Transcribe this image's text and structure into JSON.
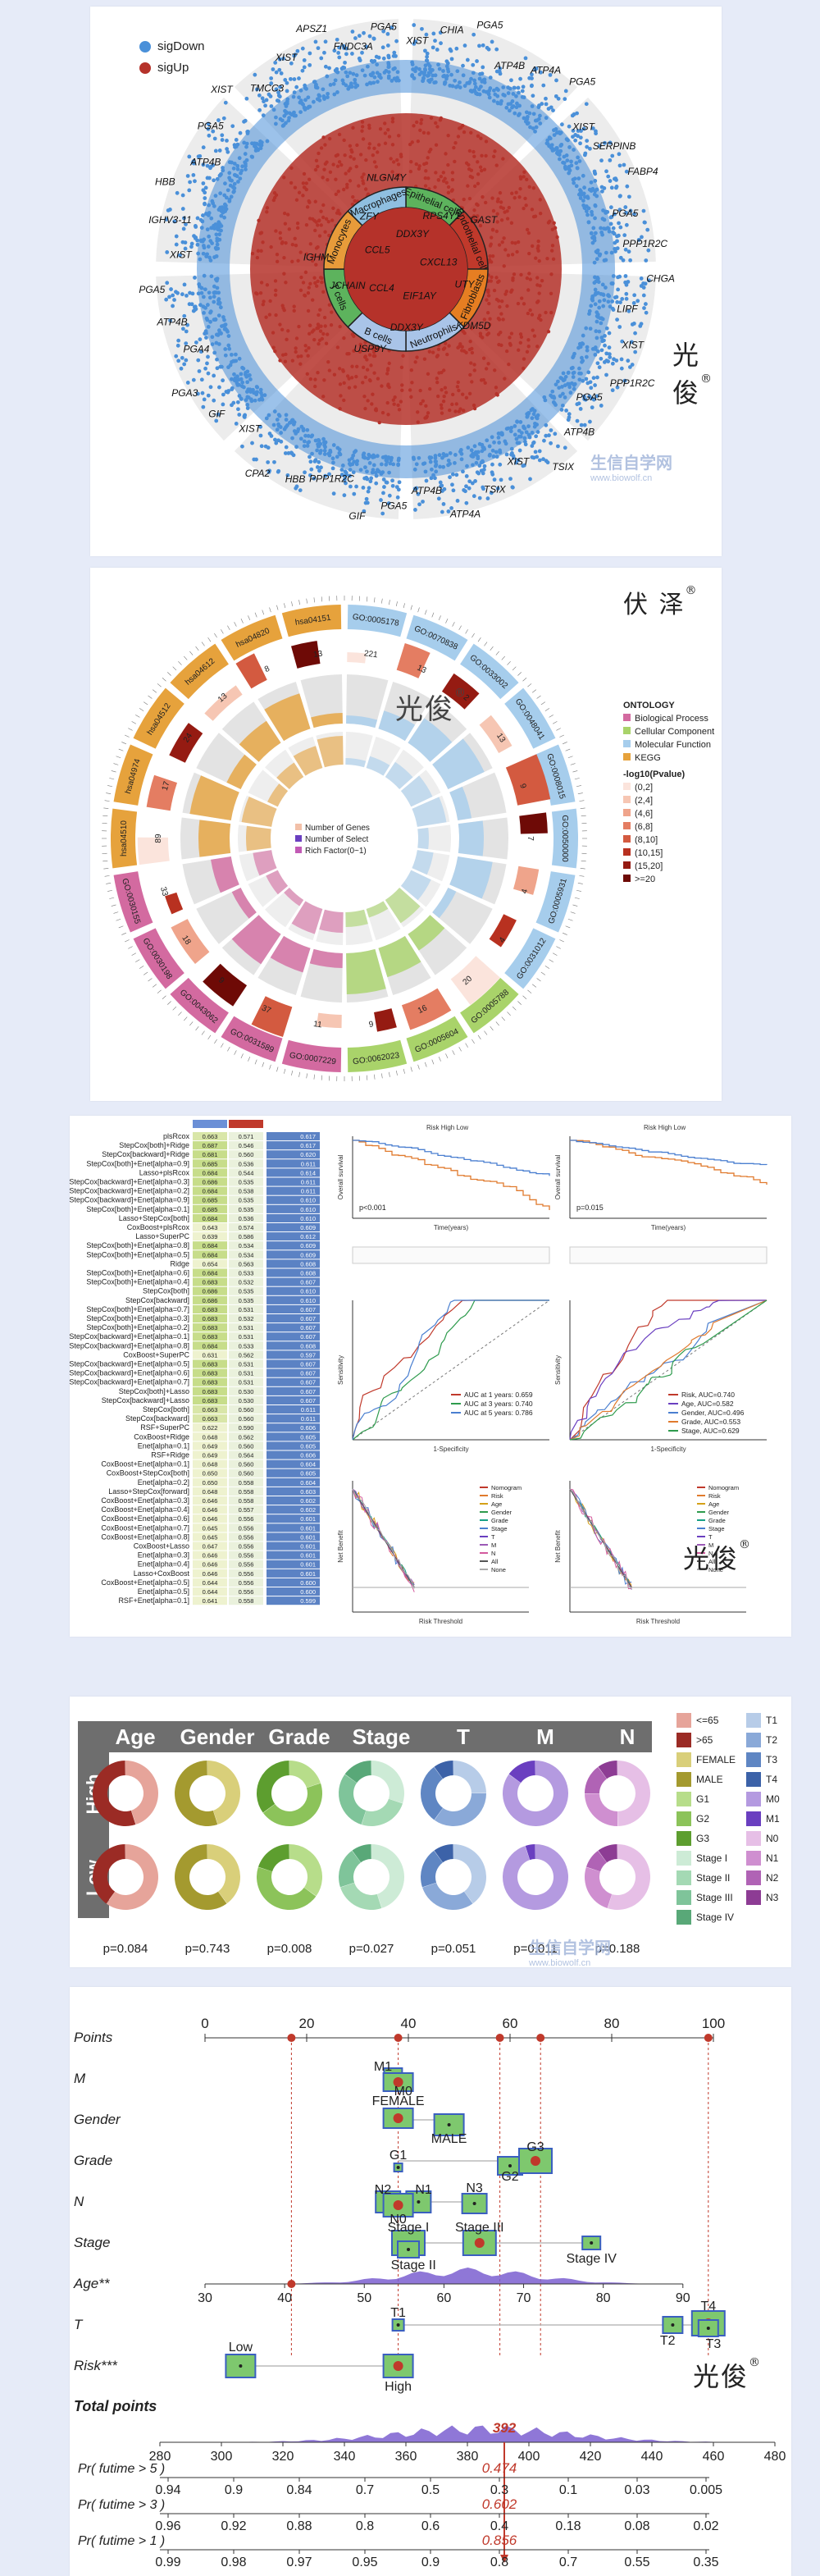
{
  "watermark": {
    "brand1": "光俊",
    "brand2": "伏 泽",
    "reg": "®",
    "site": "生信自学网",
    "site_url": "www.biowolf.cn"
  },
  "panel1": {
    "legend": [
      {
        "label": "sigDown",
        "color": "#4a90d9"
      },
      {
        "label": "sigUp",
        "color": "#b5322a"
      }
    ],
    "sectors": [
      "Epithelial cells",
      "Endothelial cells",
      "Fibroblasts",
      "Neutrophils",
      "B cells",
      "T cells",
      "Monocytes",
      "Macrophages"
    ],
    "genes_outer": [
      "XIST",
      "CHIA",
      "PGA5",
      "ATP4B",
      "ATP4A",
      "PGA5",
      "XIST",
      "SERPINB",
      "FABP4",
      "PGA5",
      "PPP1R2C",
      "CHGA",
      "LIPF",
      "XIST",
      "PPP1R2C",
      "PGA5",
      "ATP4B",
      "TSIX",
      "XIST",
      "TSIX",
      "ATP4A",
      "ATP4B",
      "PGA5",
      "GIF",
      "PPP1R2C",
      "HBB",
      "CPA2",
      "XIST",
      "GIF",
      "PGA3",
      "PGA4",
      "ATP4B",
      "PGA5",
      "XIST",
      "IGHV3-11",
      "HBB",
      "ATP4B",
      "PGA5",
      "XIST",
      "TMCC3",
      "XIST",
      "APSZ1",
      "FNDC3A",
      "PGA5"
    ],
    "genes_inner": [
      "DDX3Y",
      "RPS4Y1",
      "GAST",
      "CXCL13",
      "UTY",
      "KDM5D",
      "EIF1AY",
      "DDX3Y",
      "USP9Y",
      "CCL4",
      "JCHAIN",
      "IGHM",
      "CCL5",
      "ZFY",
      "NLGN4Y"
    ]
  },
  "panel2": {
    "title": "ONTOLOGY",
    "ontology": [
      {
        "label": "Biological Process",
        "color": "#d36aa0"
      },
      {
        "label": "Cellular Component",
        "color": "#a9d36a"
      },
      {
        "label": "Molecular Function",
        "color": "#a6cdec"
      },
      {
        "label": "KEGG",
        "color": "#e6a23c"
      }
    ],
    "pval_title": "-log10(Pvalue)",
    "pval_bins": [
      {
        "label": "(0,2]",
        "color": "#fbe4dc"
      },
      {
        "label": "(2,4]",
        "color": "#f6c6b3"
      },
      {
        "label": "(4,6]",
        "color": "#efa48b"
      },
      {
        "label": "(6,8]",
        "color": "#e47d62"
      },
      {
        "label": "(8,10]",
        "color": "#d35a40"
      },
      {
        "label": "(10,15]",
        "color": "#b83120"
      },
      {
        "label": "(15,20]",
        "color": "#951b12"
      },
      {
        "label": ">=20",
        "color": "#6e0a06"
      }
    ],
    "center_legend": [
      "Number of Genes",
      "Number of Select",
      "Rich Factor(0~1)"
    ],
    "terms": [
      "GO:0005178",
      "GO:0070838",
      "GO:0033002",
      "GO:0048041",
      "GO:0008015",
      "GO:0050000",
      "GO:0005931",
      "GO:0031012",
      "GO:0005788",
      "GO:0005604",
      "GO:0062023",
      "GO:0007229",
      "GO:0031589",
      "GO:0043062",
      "GO:0030198",
      "GO:0030155",
      "hsa04510",
      "hsa04974",
      "hsa04512",
      "hsa04612",
      "hsa04820",
      "hsa04151"
    ],
    "counts": [
      "221",
      "13",
      "2",
      "13",
      "9",
      "7",
      "4",
      "4",
      "20",
      "16",
      "9",
      "11",
      "37",
      "9",
      "18",
      "33",
      "89",
      "17",
      "24",
      "13",
      "8",
      "13"
    ]
  },
  "panel3": {
    "model_names": [
      "plsRcox",
      "StepCox[both]+Ridge",
      "StepCox[backward]+Ridge",
      "StepCox[both]+Enet[alpha=0.9]",
      "Lasso+plsRcox",
      "StepCox[backward]+Enet[alpha=0.3]",
      "StepCox[backward]+Enet[alpha=0.2]",
      "StepCox[backward]+Enet[alpha=0.9]",
      "StepCox[both]+Enet[alpha=0.1]",
      "Lasso+StepCox[both]",
      "CoxBoost+plsRcox",
      "Lasso+SuperPC",
      "StepCox[both]+Enet[alpha=0.8]",
      "StepCox[both]+Enet[alpha=0.5]",
      "Ridge",
      "StepCox[both]+Enet[alpha=0.6]",
      "StepCox[both]+Enet[alpha=0.4]",
      "StepCox[both]",
      "StepCox[backward]",
      "StepCox[both]+Enet[alpha=0.7]",
      "StepCox[both]+Enet[alpha=0.3]",
      "StepCox[both]+Enet[alpha=0.2]",
      "StepCox[backward]+Enet[alpha=0.1]",
      "StepCox[backward]+Enet[alpha=0.8]",
      "CoxBoost+SuperPC",
      "StepCox[backward]+Enet[alpha=0.5]",
      "StepCox[backward]+Enet[alpha=0.6]",
      "StepCox[backward]+Enet[alpha=0.7]",
      "StepCox[both]+Lasso",
      "StepCox[backward]+Lasso",
      "StepCox[both]",
      "StepCox[backward]",
      "RSF+SuperPC",
      "CoxBoost+Ridge",
      "Enet[alpha=0.1]",
      "RSF+Ridge",
      "CoxBoost+Enet[alpha=0.1]",
      "CoxBoost+StepCox[both]",
      "Enet[alpha=0.2]",
      "Lasso+StepCox[forward]",
      "CoxBoost+Enet[alpha=0.3]",
      "CoxBoost+Enet[alpha=0.4]",
      "CoxBoost+Enet[alpha=0.6]",
      "CoxBoost+Enet[alpha=0.7]",
      "CoxBoost+Enet[alpha=0.8]",
      "CoxBoost+Lasso",
      "Enet[alpha=0.3]",
      "Enet[alpha=0.4]",
      "Lasso+CoxBoost",
      "CoxBoost+Enet[alpha=0.5]",
      "Enet[alpha=0.5]",
      "RSF+Enet[alpha=0.1]"
    ],
    "c1": [
      "0.663",
      "0.687",
      "0.681",
      "0.685",
      "0.684",
      "0.686",
      "0.684",
      "0.685",
      "0.685",
      "0.684",
      "0.643",
      "0.639",
      "0.684",
      "0.684",
      "0.654",
      "0.684",
      "0.683",
      "0.686",
      "0.686",
      "0.683",
      "0.683",
      "0.683",
      "0.683",
      "0.684",
      "0.631",
      "0.683",
      "0.683",
      "0.683",
      "0.683",
      "0.683",
      "0.663",
      "0.663",
      "0.622",
      "0.648",
      "0.649",
      "0.649",
      "0.648",
      "0.650",
      "0.650",
      "0.648",
      "0.646",
      "0.646",
      "0.646",
      "0.645",
      "0.645",
      "0.647",
      "0.646",
      "0.646",
      "0.646",
      "0.644",
      "0.644",
      "0.641"
    ],
    "c2": [
      "0.571",
      "0.546",
      "0.560",
      "0.536",
      "0.544",
      "0.535",
      "0.538",
      "0.535",
      "0.535",
      "0.536",
      "0.574",
      "0.586",
      "0.534",
      "0.534",
      "0.563",
      "0.533",
      "0.532",
      "0.535",
      "0.535",
      "0.531",
      "0.532",
      "0.531",
      "0.531",
      "0.533",
      "0.562",
      "0.531",
      "0.531",
      "0.531",
      "0.530",
      "0.530",
      "0.560",
      "0.560",
      "0.590",
      "0.562",
      "0.560",
      "0.564",
      "0.560",
      "0.560",
      "0.558",
      "0.558",
      "0.558",
      "0.557",
      "0.556",
      "0.556",
      "0.556",
      "0.556",
      "0.556",
      "0.556",
      "0.556",
      "0.556",
      "0.556",
      "0.558"
    ],
    "mean": [
      "0.617",
      "0.617",
      "0.620",
      "0.611",
      "0.614",
      "0.611",
      "0.611",
      "0.610",
      "0.610",
      "0.610",
      "0.609",
      "0.612",
      "0.609",
      "0.609",
      "0.608",
      "0.608",
      "0.607",
      "0.610",
      "0.610",
      "0.607",
      "0.607",
      "0.607",
      "0.607",
      "0.608",
      "0.597",
      "0.607",
      "0.607",
      "0.607",
      "0.607",
      "0.607",
      "0.611",
      "0.611",
      "0.606",
      "0.605",
      "0.605",
      "0.606",
      "0.604",
      "0.605",
      "0.604",
      "0.603",
      "0.602",
      "0.602",
      "0.601",
      "0.601",
      "0.601",
      "0.601",
      "0.601",
      "0.601",
      "0.601",
      "0.600",
      "0.600",
      "0.599"
    ],
    "km1": {
      "legend": [
        "Risk",
        "High",
        "Low"
      ],
      "pvalue": "p<0.001",
      "xlabel": "Time(years)",
      "ylabel": "Overall survival"
    },
    "km2": {
      "legend": [
        "Risk",
        "High",
        "Low"
      ],
      "pvalue": "p=0.015",
      "xlabel": "Time(years)",
      "ylabel": "Overall survival"
    },
    "roc1": {
      "labels": [
        "AUC at 1 years: 0.659",
        "AUC at 3 years: 0.740",
        "AUC at 5 years: 0.786"
      ],
      "xlabel": "1-Specificity",
      "ylabel": "Sensitivity"
    },
    "roc2": {
      "labels": [
        "Risk, AUC=0.740",
        "Age, AUC=0.582",
        "Gender, AUC=0.496",
        "Grade, AUC=0.553",
        "Stage, AUC=0.629"
      ],
      "xlabel": "1-Specificity",
      "ylabel": "Sensitivity"
    },
    "dca": {
      "legend": [
        "Nomogram",
        "Risk",
        "Age",
        "Gender",
        "Grade",
        "Stage",
        "T",
        "M",
        "N",
        "All",
        "None"
      ],
      "xlabel": "Risk Threshold",
      "ylabel": "Net Benefit"
    }
  },
  "panel4": {
    "columns": [
      "Age",
      "Gender",
      "Grade",
      "Stage",
      "T",
      "M",
      "N"
    ],
    "rows": [
      "High",
      "Low"
    ],
    "pvalues": [
      "p=0.084",
      "p=0.743",
      "p=0.008",
      "p=0.027",
      "p=0.051",
      "p=0.011",
      "p=0.188"
    ],
    "legend_left": [
      {
        "label": "<=65",
        "color": "#e6a49a"
      },
      {
        "label": ">65",
        "color": "#9b2b25"
      },
      {
        "label": "FEMALE",
        "color": "#d9cf7a"
      },
      {
        "label": "MALE",
        "color": "#a49a2f"
      },
      {
        "label": "G1",
        "color": "#b7dd8a"
      },
      {
        "label": "G2",
        "color": "#8cc35a"
      },
      {
        "label": "G3",
        "color": "#5d9e2f"
      },
      {
        "label": "Stage I",
        "color": "#cdebd6"
      },
      {
        "label": "Stage II",
        "color": "#a4d9b4"
      },
      {
        "label": "Stage III",
        "color": "#7fc49a"
      },
      {
        "label": "Stage IV",
        "color": "#59a878"
      }
    ],
    "legend_right": [
      {
        "label": "T1",
        "color": "#b7cce8"
      },
      {
        "label": "T2",
        "color": "#8aa9d8"
      },
      {
        "label": "T3",
        "color": "#5f86c3"
      },
      {
        "label": "T4",
        "color": "#3c62a8"
      },
      {
        "label": "M0",
        "color": "#b49ae0"
      },
      {
        "label": "M1",
        "color": "#6a3fc0"
      },
      {
        "label": "N0",
        "color": "#e6bfe6"
      },
      {
        "label": "N1",
        "color": "#cf8fd0"
      },
      {
        "label": "N2",
        "color": "#b063b5"
      },
      {
        "label": "N3",
        "color": "#8d3c94"
      }
    ]
  },
  "panel5": {
    "rows": [
      "Points",
      "M",
      "Gender",
      "Grade",
      "N",
      "Stage",
      "Age**",
      "T",
      "Risk***",
      "Total points"
    ],
    "points_ticks": [
      "0",
      "20",
      "40",
      "60",
      "80",
      "100"
    ],
    "age_ticks": [
      "30",
      "40",
      "50",
      "60",
      "70",
      "80",
      "90"
    ],
    "total_ticks": [
      "280",
      "300",
      "320",
      "340",
      "360",
      "380",
      "400",
      "420",
      "440",
      "460",
      "480"
    ],
    "total_value": "392",
    "labels_M": [
      "M1",
      "M0"
    ],
    "labels_Gender": [
      "FEMALE",
      "MALE"
    ],
    "labels_Grade": [
      "G1",
      "G2",
      "G3"
    ],
    "labels_N": [
      "N2",
      "N1",
      "N0",
      "N3"
    ],
    "labels_Stage": [
      "Stage I",
      "Stage II",
      "Stage III",
      "Stage IV"
    ],
    "labels_T": [
      "T1",
      "T2",
      "T4",
      "T3"
    ],
    "labels_Risk": [
      "Low",
      "High"
    ],
    "pr5": {
      "label": "Pr( futime > 5 )",
      "ticks": [
        "0.94",
        "0.9",
        "0.84",
        "0.7",
        "0.5",
        "0.3",
        "0.1",
        "0.03",
        "0.005"
      ],
      "value": "0.474"
    },
    "pr3": {
      "label": "Pr( futime > 3 )",
      "ticks": [
        "0.96",
        "0.92",
        "0.88",
        "0.8",
        "0.6",
        "0.4",
        "0.18",
        "0.08",
        "0.02"
      ],
      "value": "0.602"
    },
    "pr1": {
      "label": "Pr( futime > 1 )",
      "ticks": [
        "0.99",
        "0.98",
        "0.97",
        "0.95",
        "0.9",
        "0.8",
        "0.7",
        "0.55",
        "0.35"
      ],
      "value": "0.856"
    }
  }
}
